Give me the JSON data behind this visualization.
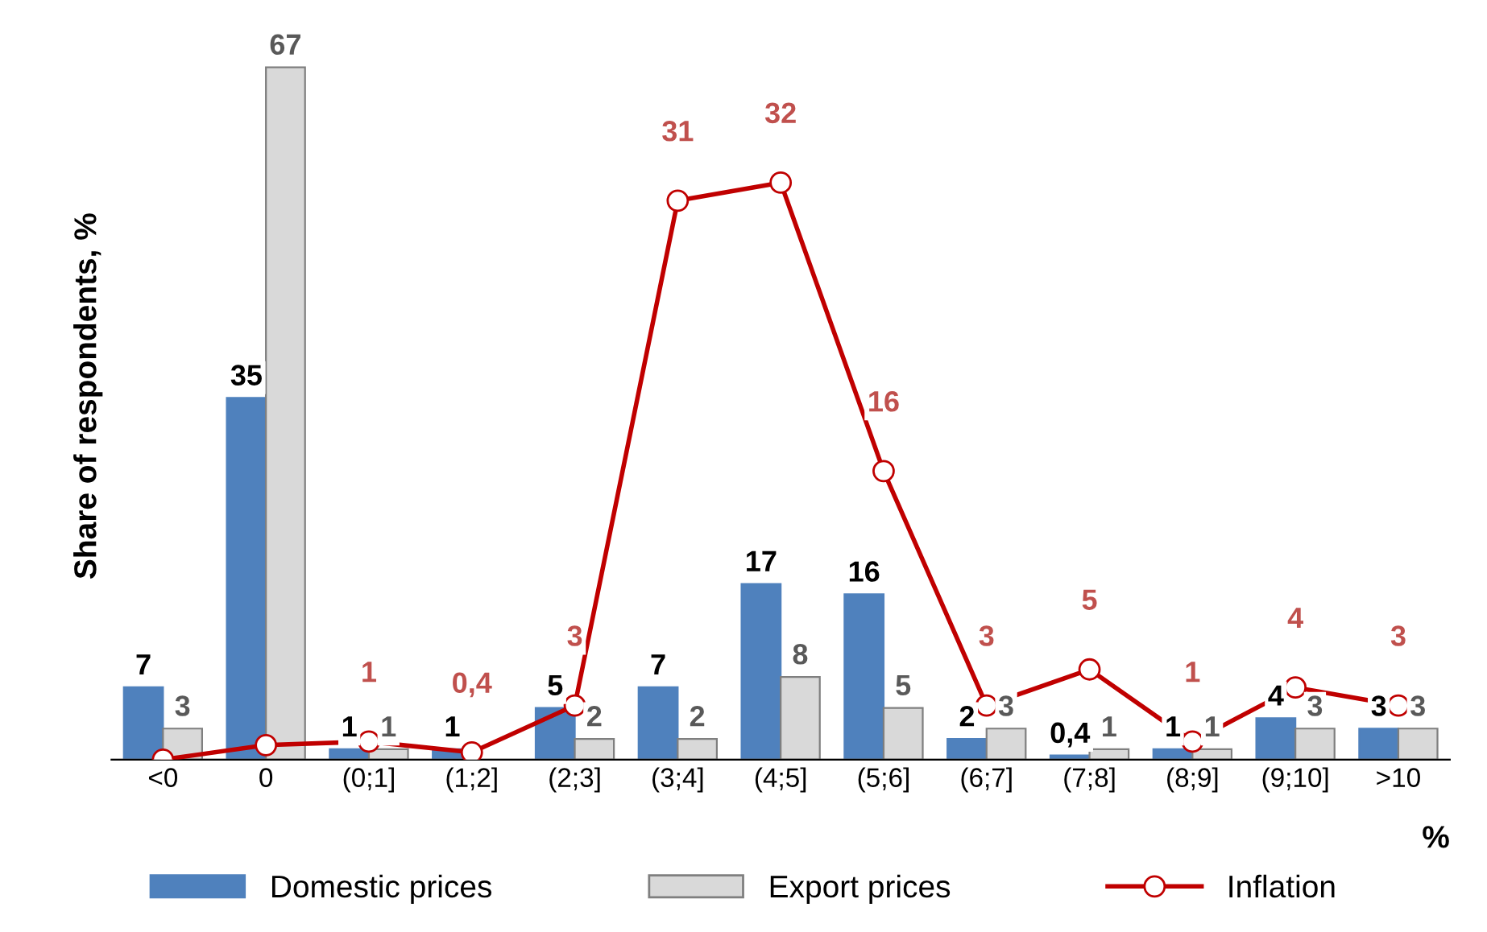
{
  "chart_data": {
    "type": "bar",
    "ylabel": "Share of respondents, %",
    "xlabel": "%",
    "categories": [
      "<0",
      "0",
      "(0;1]",
      "(1;2]",
      "(2;3]",
      "(3;4]",
      "(4;5]",
      "(5;6]",
      "(6;7]",
      "(7;8]",
      "(8;9]",
      "(9;10]",
      ">10"
    ],
    "series": [
      {
        "name": "Domestic prices",
        "color": "#4f81bd",
        "values": [
          7,
          35,
          1,
          1,
          5,
          7,
          17,
          16,
          2,
          0.4,
          1,
          4,
          3
        ],
        "value_labels": [
          "7",
          "35",
          "1",
          "1",
          "5",
          "7",
          "17",
          "16",
          "2",
          "0,4",
          "1",
          "4",
          "3"
        ]
      },
      {
        "name": "Export prices",
        "color": "#d9d9d9",
        "values": [
          3,
          67,
          1,
          null,
          2,
          2,
          8,
          5,
          3,
          1,
          1,
          3,
          3
        ],
        "value_labels": [
          "3",
          "67",
          "1",
          null,
          "2",
          "2",
          "8",
          "5",
          "3",
          "1",
          "1",
          "3",
          "3"
        ]
      },
      {
        "name": "Inflation",
        "type": "line",
        "axis": "y2",
        "color": "#c00000",
        "marker": "circle",
        "values": [
          0,
          0.8,
          1,
          0.4,
          3,
          31,
          32,
          16,
          3,
          5,
          1,
          4,
          3
        ],
        "value_labels": [
          null,
          null,
          "1",
          "0,4",
          "3",
          "31",
          "32",
          "16",
          "3",
          "5",
          "1",
          "4",
          "3"
        ]
      }
    ],
    "tick_labels": "x",
    "legend": "bottom",
    "grid": false
  }
}
